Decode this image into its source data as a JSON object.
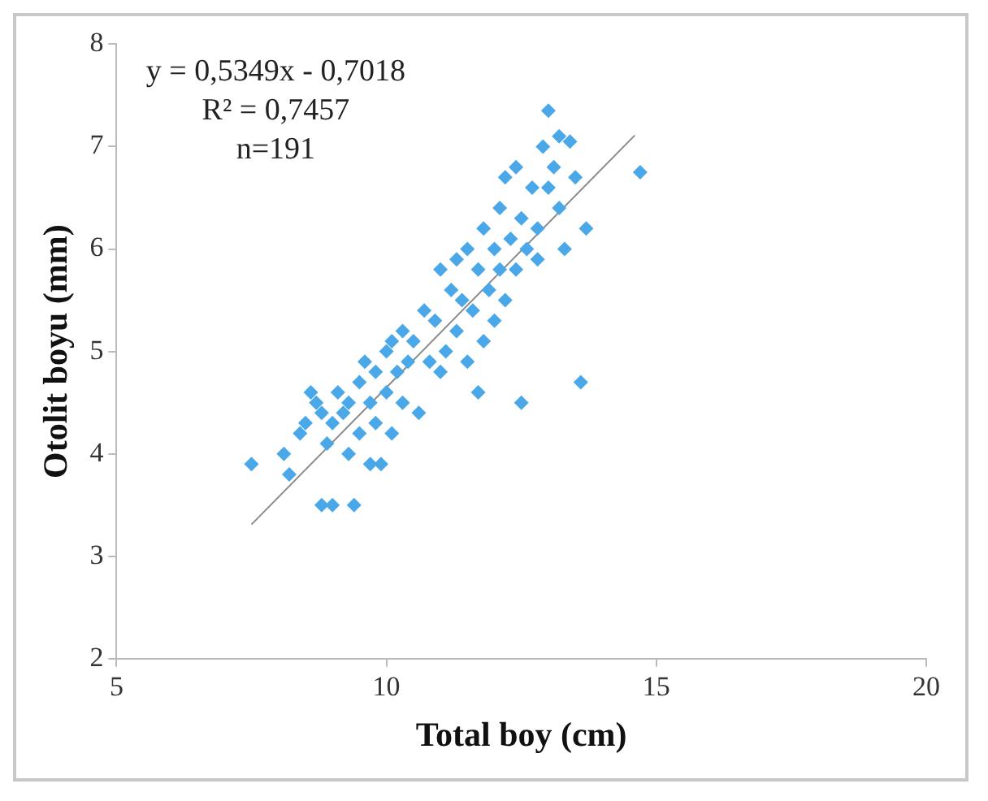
{
  "chart_data": {
    "type": "scatter",
    "xlabel": "Total boy (cm)",
    "ylabel": "Otolit boyu (mm)",
    "annotations": [
      "y = 0,5349x - 0,7018",
      "R² = 0,7457",
      "n=191"
    ],
    "xlim": [
      5,
      20
    ],
    "xticks": [
      5,
      10,
      15,
      20
    ],
    "ylim": [
      2,
      8
    ],
    "yticks": [
      2,
      3,
      4,
      5,
      6,
      7,
      8
    ],
    "grid": false,
    "legend": false,
    "marker": "diamond",
    "series": [
      {
        "type": "scatter",
        "color": "#4aa8e8",
        "x": [
          7.5,
          8.1,
          8.2,
          8.4,
          8.5,
          8.6,
          8.7,
          8.8,
          8.8,
          9.0,
          9.4,
          8.9,
          9.0,
          9.1,
          9.2,
          9.3,
          9.3,
          9.5,
          9.5,
          9.6,
          9.7,
          9.7,
          9.8,
          9.8,
          9.9,
          10.0,
          10.0,
          10.1,
          10.1,
          10.2,
          10.3,
          10.3,
          10.4,
          10.5,
          10.6,
          10.7,
          10.8,
          10.9,
          11.0,
          11.0,
          11.1,
          11.2,
          11.3,
          11.3,
          11.4,
          11.5,
          11.5,
          11.6,
          11.7,
          11.7,
          11.8,
          11.8,
          11.9,
          12.0,
          12.0,
          12.1,
          12.1,
          12.2,
          12.2,
          12.3,
          12.4,
          12.4,
          12.5,
          12.5,
          12.6,
          12.7,
          12.8,
          12.8,
          12.9,
          13.0,
          13.0,
          13.1,
          13.2,
          13.2,
          13.3,
          13.4,
          13.5,
          13.7,
          13.6,
          14.7
        ],
        "values": [
          3.9,
          4.0,
          3.8,
          4.2,
          4.3,
          4.6,
          4.5,
          4.4,
          3.5,
          3.5,
          3.5,
          4.1,
          4.3,
          4.6,
          4.4,
          4.5,
          4.0,
          4.7,
          4.2,
          4.9,
          4.5,
          3.9,
          4.8,
          4.3,
          3.9,
          5.0,
          4.6,
          5.1,
          4.2,
          4.8,
          5.2,
          4.5,
          4.9,
          5.1,
          4.4,
          5.4,
          4.9,
          5.3,
          5.8,
          4.8,
          5.0,
          5.6,
          5.9,
          5.2,
          5.5,
          6.0,
          4.9,
          5.4,
          5.8,
          4.6,
          6.2,
          5.1,
          5.6,
          6.0,
          5.3,
          6.4,
          5.8,
          6.7,
          5.5,
          6.1,
          5.8,
          6.8,
          4.5,
          6.3,
          6.0,
          6.6,
          6.2,
          5.9,
          7.0,
          6.6,
          7.35,
          6.8,
          7.1,
          6.4,
          6.0,
          7.05,
          6.7,
          6.2,
          4.7,
          6.75
        ]
      },
      {
        "type": "line",
        "color": "#8a8a8a",
        "marker": "none",
        "x": [
          7.5,
          14.6
        ],
        "values": [
          3.31,
          7.11
        ]
      }
    ]
  }
}
